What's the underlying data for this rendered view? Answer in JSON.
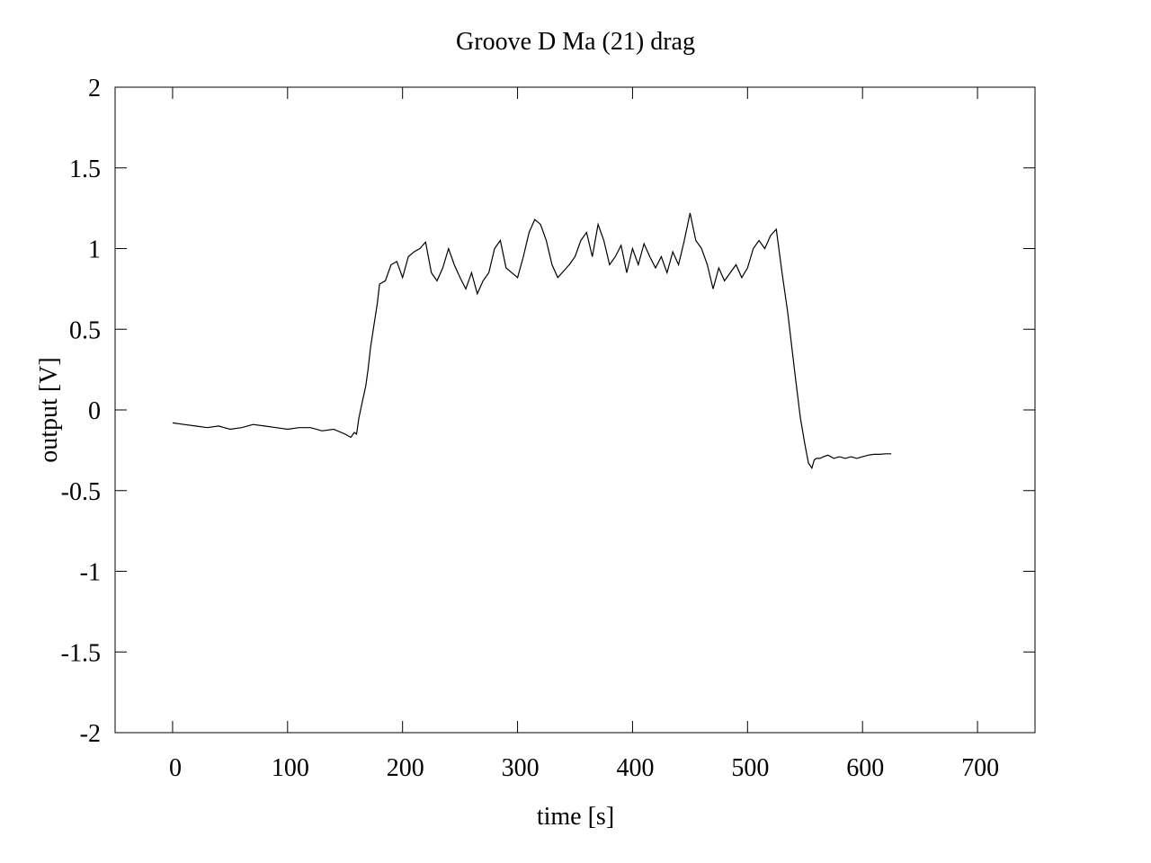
{
  "chart_data": {
    "type": "line",
    "title": "Groove D  Ma (21) drag",
    "xlabel": "time [s]",
    "ylabel": "output [V]",
    "xlim": [
      -50,
      750
    ],
    "ylim": [
      -2,
      2
    ],
    "x_ticks": [
      0,
      100,
      200,
      300,
      400,
      500,
      600,
      700
    ],
    "y_ticks": [
      -2,
      -1.5,
      -1,
      -0.5,
      0,
      0.5,
      1,
      1.5,
      2
    ],
    "grid": false,
    "legend": "none",
    "line_color": "#000000",
    "series": [
      {
        "x": [
          0,
          10,
          20,
          30,
          40,
          50,
          60,
          70,
          80,
          90,
          100,
          110,
          120,
          130,
          140,
          150,
          155,
          158,
          160,
          162,
          165,
          168,
          170,
          172,
          175,
          178,
          180,
          185,
          190,
          195,
          200,
          205,
          210,
          215,
          220,
          225,
          230,
          235,
          240,
          245,
          250,
          255,
          260,
          265,
          270,
          275,
          280,
          285,
          290,
          295,
          300,
          305,
          310,
          315,
          320,
          325,
          330,
          335,
          340,
          345,
          350,
          355,
          360,
          365,
          370,
          375,
          380,
          385,
          390,
          395,
          400,
          405,
          410,
          415,
          420,
          425,
          430,
          435,
          440,
          445,
          450,
          455,
          460,
          465,
          470,
          475,
          480,
          485,
          490,
          495,
          500,
          505,
          510,
          515,
          520,
          525,
          530,
          535,
          538,
          542,
          546,
          550,
          553,
          556,
          558,
          560,
          563,
          566,
          570,
          575,
          580,
          585,
          590,
          595,
          600,
          605,
          610,
          615,
          620,
          625
        ],
        "y": [
          -0.08,
          -0.09,
          -0.1,
          -0.11,
          -0.1,
          -0.12,
          -0.11,
          -0.09,
          -0.1,
          -0.11,
          -0.12,
          -0.11,
          -0.11,
          -0.13,
          -0.12,
          -0.15,
          -0.17,
          -0.14,
          -0.15,
          -0.05,
          0.05,
          0.15,
          0.25,
          0.38,
          0.52,
          0.66,
          0.78,
          0.8,
          0.9,
          0.92,
          0.82,
          0.95,
          0.98,
          1.0,
          1.04,
          0.85,
          0.8,
          0.88,
          1.0,
          0.9,
          0.82,
          0.75,
          0.85,
          0.72,
          0.8,
          0.85,
          1.0,
          1.05,
          0.88,
          0.85,
          0.82,
          0.95,
          1.1,
          1.18,
          1.15,
          1.05,
          0.9,
          0.82,
          0.86,
          0.9,
          0.95,
          1.05,
          1.1,
          0.95,
          1.15,
          1.05,
          0.9,
          0.95,
          1.02,
          0.85,
          1.0,
          0.9,
          1.03,
          0.95,
          0.88,
          0.95,
          0.85,
          0.98,
          0.9,
          1.05,
          1.22,
          1.05,
          1.0,
          0.9,
          0.75,
          0.88,
          0.8,
          0.85,
          0.9,
          0.82,
          0.88,
          1.0,
          1.05,
          1.0,
          1.08,
          1.12,
          0.85,
          0.6,
          0.42,
          0.18,
          -0.05,
          -0.22,
          -0.33,
          -0.36,
          -0.31,
          -0.3,
          -0.3,
          -0.29,
          -0.28,
          -0.3,
          -0.29,
          -0.3,
          -0.29,
          -0.3,
          -0.29,
          -0.28,
          -0.275,
          -0.275,
          -0.272,
          -0.272
        ]
      }
    ]
  }
}
